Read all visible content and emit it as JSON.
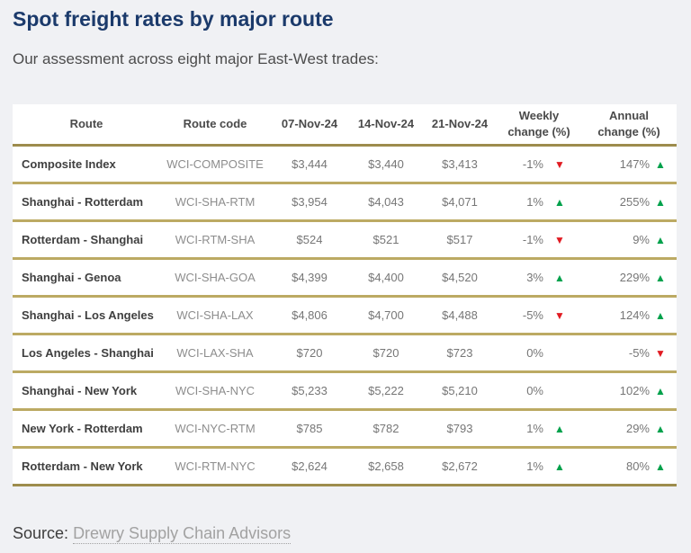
{
  "page": {
    "title": "Spot freight rates by major route",
    "subtitle": "Our assessment across eight major East-West trades:",
    "source_label": "Source:",
    "source_link": "Drewry Supply Chain Advisors"
  },
  "icons": {
    "up_arrow": "▲",
    "down_arrow": "▼"
  },
  "colors": {
    "title_navy": "#1b3a6b",
    "up_green": "#00a14b",
    "down_red": "#e11b22",
    "row_border_gold": "#bcaa63",
    "header_border_gold": "#9d8c4d",
    "page_background": "#f0f1f4",
    "link_gray": "#a2a2a2"
  },
  "chart_data": {
    "type": "table",
    "title": "Spot freight rates by major route",
    "subtitle": "Our assessment across eight major East-West trades:",
    "columns": [
      "Route",
      "Route code",
      "07-Nov-24",
      "14-Nov-24",
      "21-Nov-24",
      "Weekly\nchange (%)",
      "Annual\nchange (%)"
    ],
    "rows": [
      {
        "route": "Composite Index",
        "code": "WCI-COMPOSITE",
        "rates": [
          "$3,444",
          "$3,440",
          "$3,413"
        ],
        "weekly_change": "-1%",
        "weekly_dir": "down",
        "annual_change": "147%",
        "annual_dir": "up"
      },
      {
        "route": "Shanghai - Rotterdam",
        "code": "WCI-SHA-RTM",
        "rates": [
          "$3,954",
          "$4,043",
          "$4,071"
        ],
        "weekly_change": "1%",
        "weekly_dir": "up",
        "annual_change": "255%",
        "annual_dir": "up"
      },
      {
        "route": "Rotterdam - Shanghai",
        "code": "WCI-RTM-SHA",
        "rates": [
          "$524",
          "$521",
          "$517"
        ],
        "weekly_change": "-1%",
        "weekly_dir": "down",
        "annual_change": "9%",
        "annual_dir": "up"
      },
      {
        "route": "Shanghai - Genoa",
        "code": "WCI-SHA-GOA",
        "rates": [
          "$4,399",
          "$4,400",
          "$4,520"
        ],
        "weekly_change": "3%",
        "weekly_dir": "up",
        "annual_change": "229%",
        "annual_dir": "up"
      },
      {
        "route": "Shanghai - Los Angeles",
        "code": "WCI-SHA-LAX",
        "rates": [
          "$4,806",
          "$4,700",
          "$4,488"
        ],
        "weekly_change": "-5%",
        "weekly_dir": "down",
        "annual_change": "124%",
        "annual_dir": "up"
      },
      {
        "route": "Los Angeles - Shanghai",
        "code": "WCI-LAX-SHA",
        "rates": [
          "$720",
          "$720",
          "$723"
        ],
        "weekly_change": "0%",
        "weekly_dir": "none",
        "annual_change": "-5%",
        "annual_dir": "down"
      },
      {
        "route": "Shanghai - New York",
        "code": "WCI-SHA-NYC",
        "rates": [
          "$5,233",
          "$5,222",
          "$5,210"
        ],
        "weekly_change": "0%",
        "weekly_dir": "none",
        "annual_change": "102%",
        "annual_dir": "up"
      },
      {
        "route": "New York - Rotterdam",
        "code": "WCI-NYC-RTM",
        "rates": [
          "$785",
          "$782",
          "$793"
        ],
        "weekly_change": "1%",
        "weekly_dir": "up",
        "annual_change": "29%",
        "annual_dir": "up"
      },
      {
        "route": "Rotterdam - New York",
        "code": "WCI-RTM-NYC",
        "rates": [
          "$2,624",
          "$2,658",
          "$2,672"
        ],
        "weekly_change": "1%",
        "weekly_dir": "up",
        "annual_change": "80%",
        "annual_dir": "up"
      }
    ],
    "source": "Drewry Supply Chain Advisors",
    "legend_position": "none",
    "grid": "horizontal-gold-separators"
  }
}
